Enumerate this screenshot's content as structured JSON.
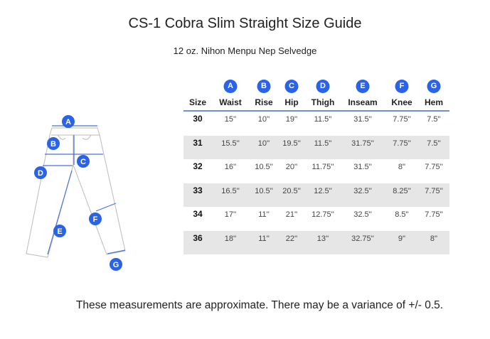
{
  "title": "CS-1 Cobra Slim Straight Size Guide",
  "subtitle": "12 oz. Nihon Menpu Nep Selvedge",
  "diagram_labels": [
    "A",
    "B",
    "C",
    "D",
    "E",
    "F",
    "G"
  ],
  "table": {
    "size_header": "Size",
    "columns": [
      {
        "badge": "A",
        "label": "Waist"
      },
      {
        "badge": "B",
        "label": "Rise"
      },
      {
        "badge": "C",
        "label": "Hip"
      },
      {
        "badge": "D",
        "label": "Thigh"
      },
      {
        "badge": "E",
        "label": "Inseam"
      },
      {
        "badge": "F",
        "label": "Knee"
      },
      {
        "badge": "G",
        "label": "Hem"
      }
    ],
    "rows": [
      {
        "size": "30",
        "values": [
          "15''",
          "10''",
          "19''",
          "11.5''",
          "31.5''",
          "7.75''",
          "7.5''"
        ]
      },
      {
        "size": "31",
        "values": [
          "15.5''",
          "10''",
          "19.5''",
          "11.5''",
          "31.75''",
          "7.75''",
          "7.5''"
        ]
      },
      {
        "size": "32",
        "values": [
          "16''",
          "10.5''",
          "20''",
          "11.75''",
          "31.5''",
          "8''",
          "7.75''"
        ]
      },
      {
        "size": "33",
        "values": [
          "16.5''",
          "10.5''",
          "20.5''",
          "12.5''",
          "32.5''",
          "8.25''",
          "7.75''"
        ]
      },
      {
        "size": "34",
        "values": [
          "17''",
          "11''",
          "21''",
          "12.75''",
          "32.5''",
          "8.5''",
          "7.75''"
        ]
      },
      {
        "size": "36",
        "values": [
          "18''",
          "11''",
          "22''",
          "13''",
          "32.75''",
          "9''",
          "8''"
        ]
      }
    ]
  },
  "footer": "These measurements are approximate. There may be a variance of +/- 0.5.",
  "colors": {
    "accent": "#2b63e6",
    "header_rule": "#6f8fd6",
    "row_stripe": "#e6e6e6"
  }
}
